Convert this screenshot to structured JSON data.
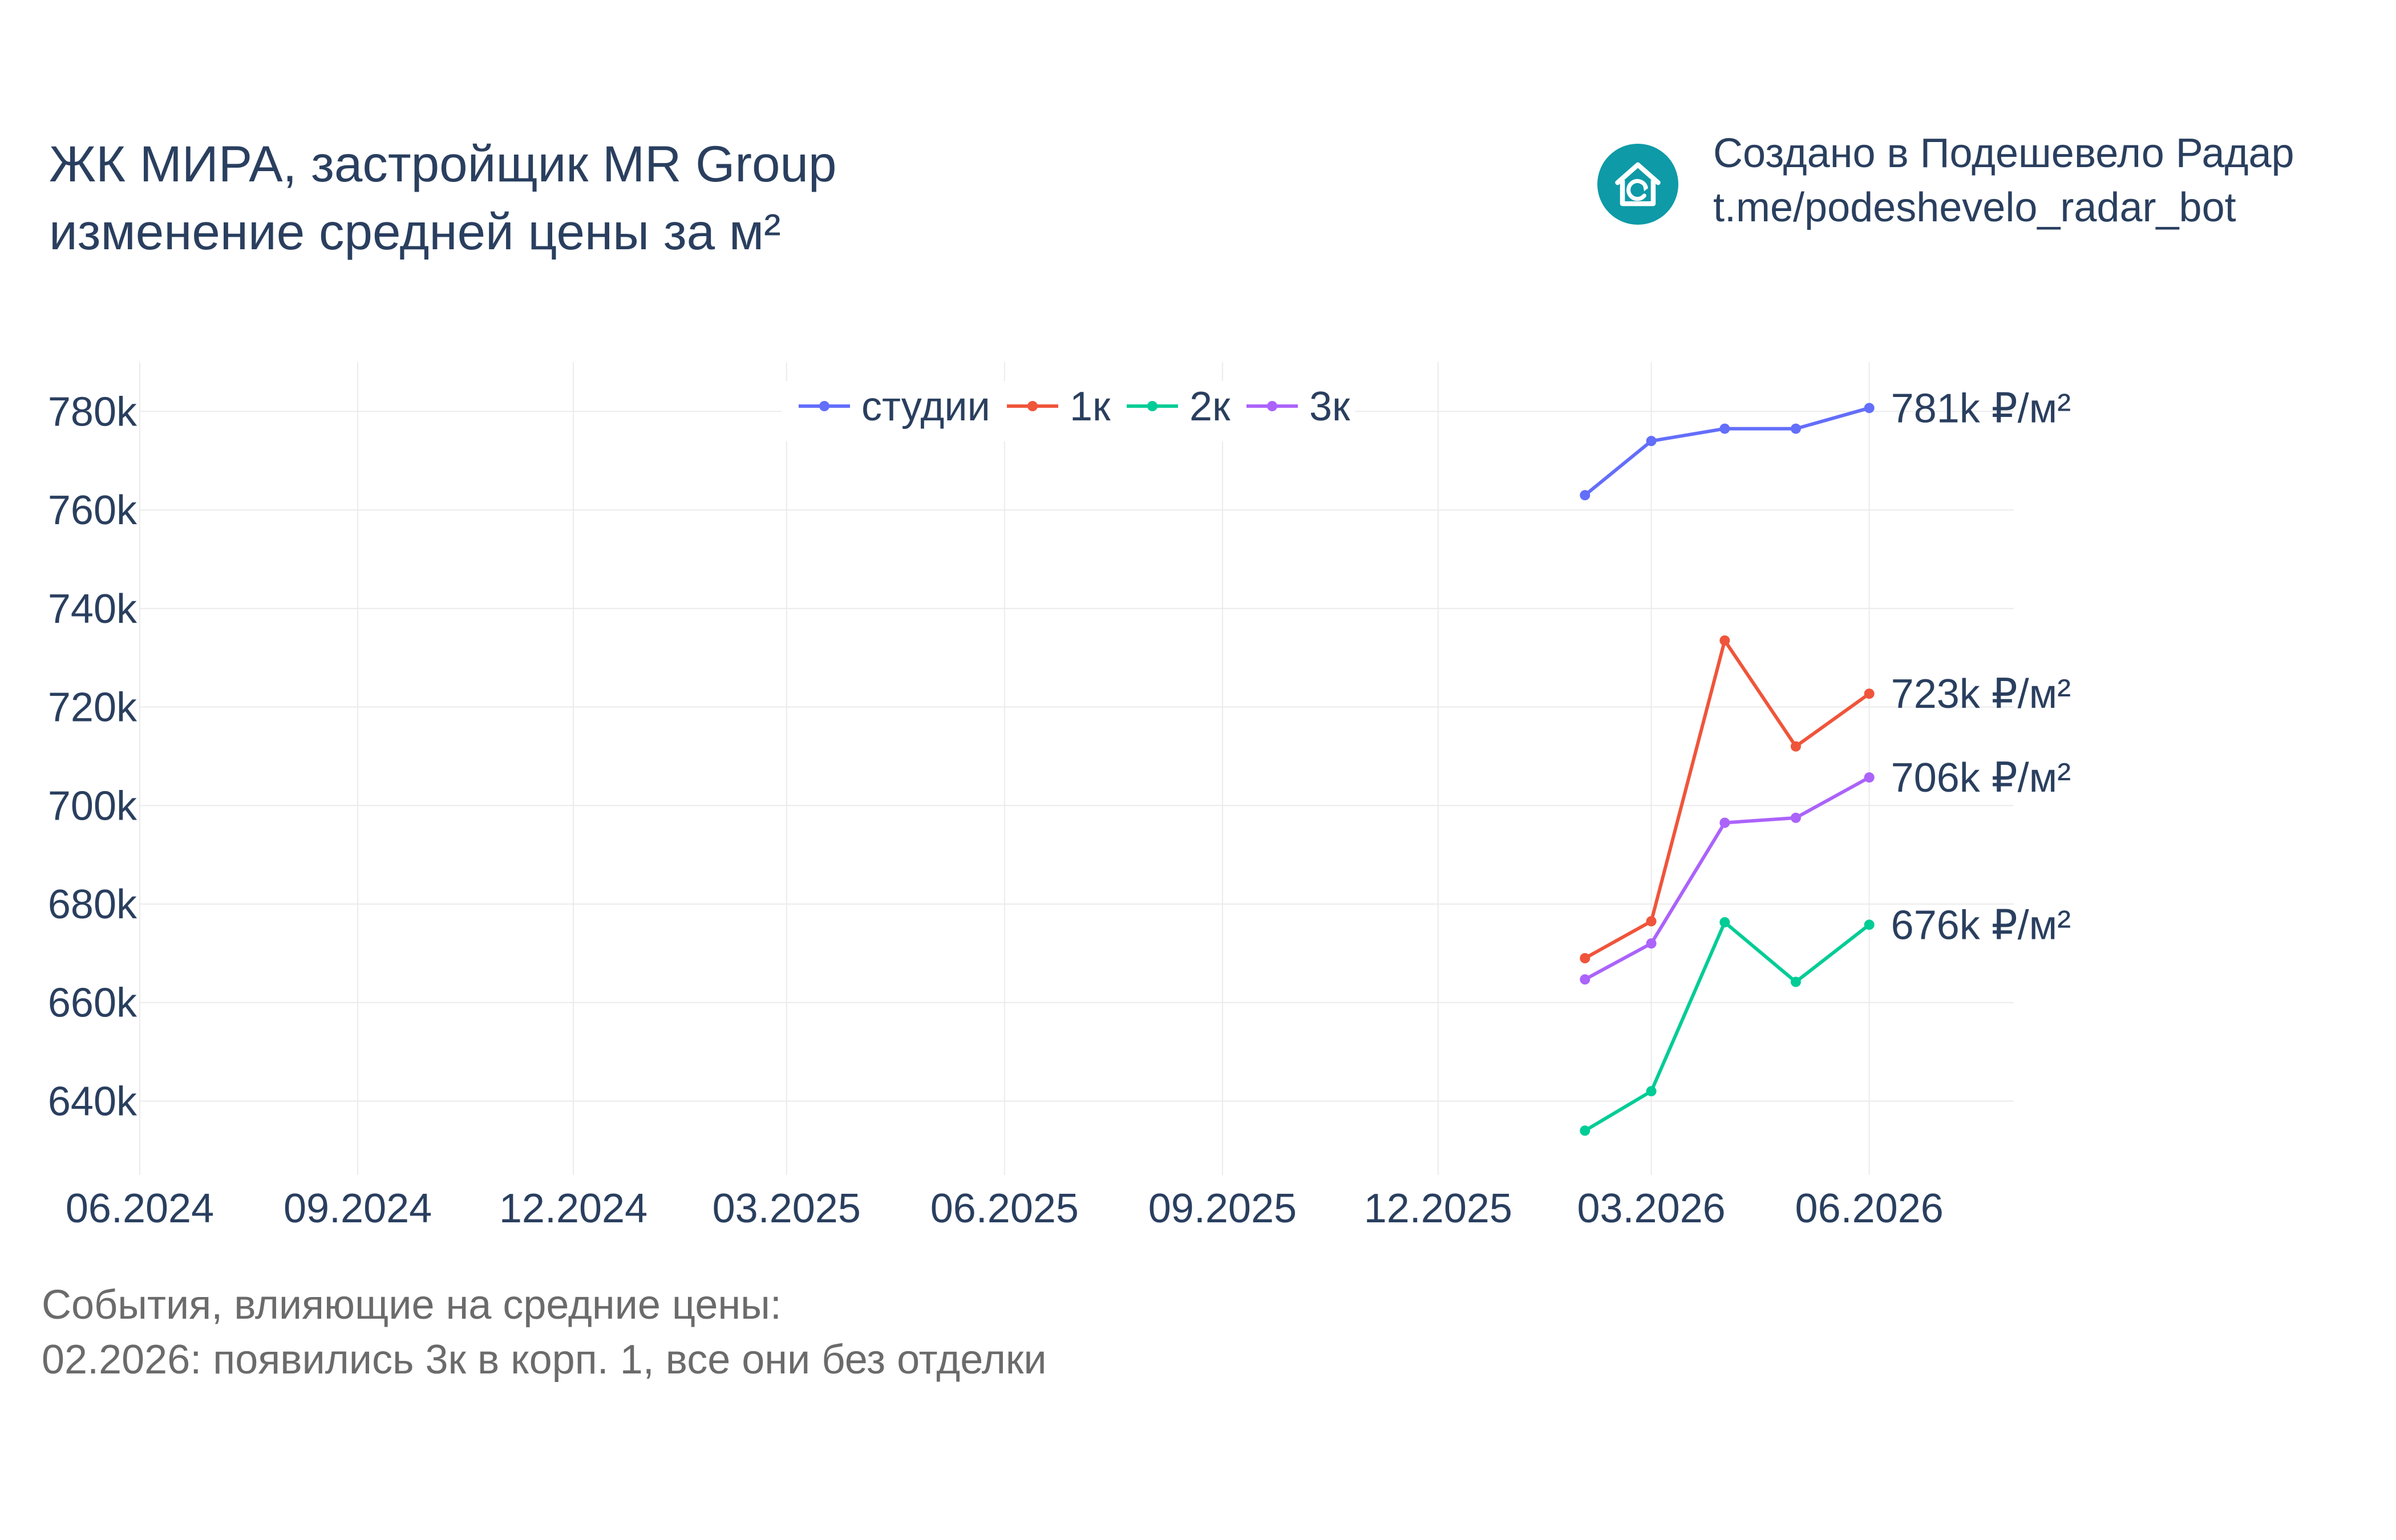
{
  "title": {
    "line1": "ЖК МИРА, застройщик MR Group",
    "line2": "изменение средней цены за м²"
  },
  "brand": {
    "line1": "Создано в Подешевело Радар",
    "line2": "t.me/podeshevelo_radar_bot",
    "logo_icon": "house-refresh-icon",
    "logo_color": "#0e9aa7"
  },
  "events": {
    "heading": "События, влияющие на средние цены:",
    "items": [
      "02.2026: появились 3к в корп. 1, все они без отделки"
    ]
  },
  "chart_data": {
    "type": "line",
    "title": "ЖК МИРА, застройщик MR Group изменение средней цены за м²",
    "x_ticks": [
      "06.2024",
      "09.2024",
      "12.2024",
      "03.2025",
      "06.2025",
      "09.2025",
      "12.2025",
      "03.2026",
      "06.2026"
    ],
    "x_range": [
      "2024-06-01",
      "2026-08-01"
    ],
    "y_ticks": [
      640000,
      660000,
      680000,
      700000,
      720000,
      740000,
      760000,
      780000
    ],
    "y_tick_labels": [
      "640k",
      "660k",
      "680k",
      "700k",
      "720k",
      "740k",
      "760k",
      "780k"
    ],
    "ylim": [
      625000,
      790000
    ],
    "grid": true,
    "legend_position": "top-center",
    "x": [
      "2026-02-01",
      "2026-03-01",
      "2026-04-01",
      "2026-05-01",
      "2026-06-01"
    ],
    "series": [
      {
        "name": "студии",
        "color": "#636efa",
        "values": [
          763000,
          774000,
          776500,
          776500,
          780700
        ],
        "end_label": "781k ₽/м²"
      },
      {
        "name": "1к",
        "color": "#ef553b",
        "values": [
          669000,
          676500,
          733500,
          712000,
          722700
        ],
        "end_label": "723k ₽/м²"
      },
      {
        "name": "2к",
        "color": "#00cc96",
        "values": [
          634000,
          642000,
          676300,
          664200,
          675800
        ],
        "end_label": "676k ₽/м²"
      },
      {
        "name": "3к",
        "color": "#ab63fa",
        "values": [
          664700,
          672000,
          696500,
          697500,
          705700
        ],
        "end_label": "706k ₽/м²"
      }
    ]
  }
}
